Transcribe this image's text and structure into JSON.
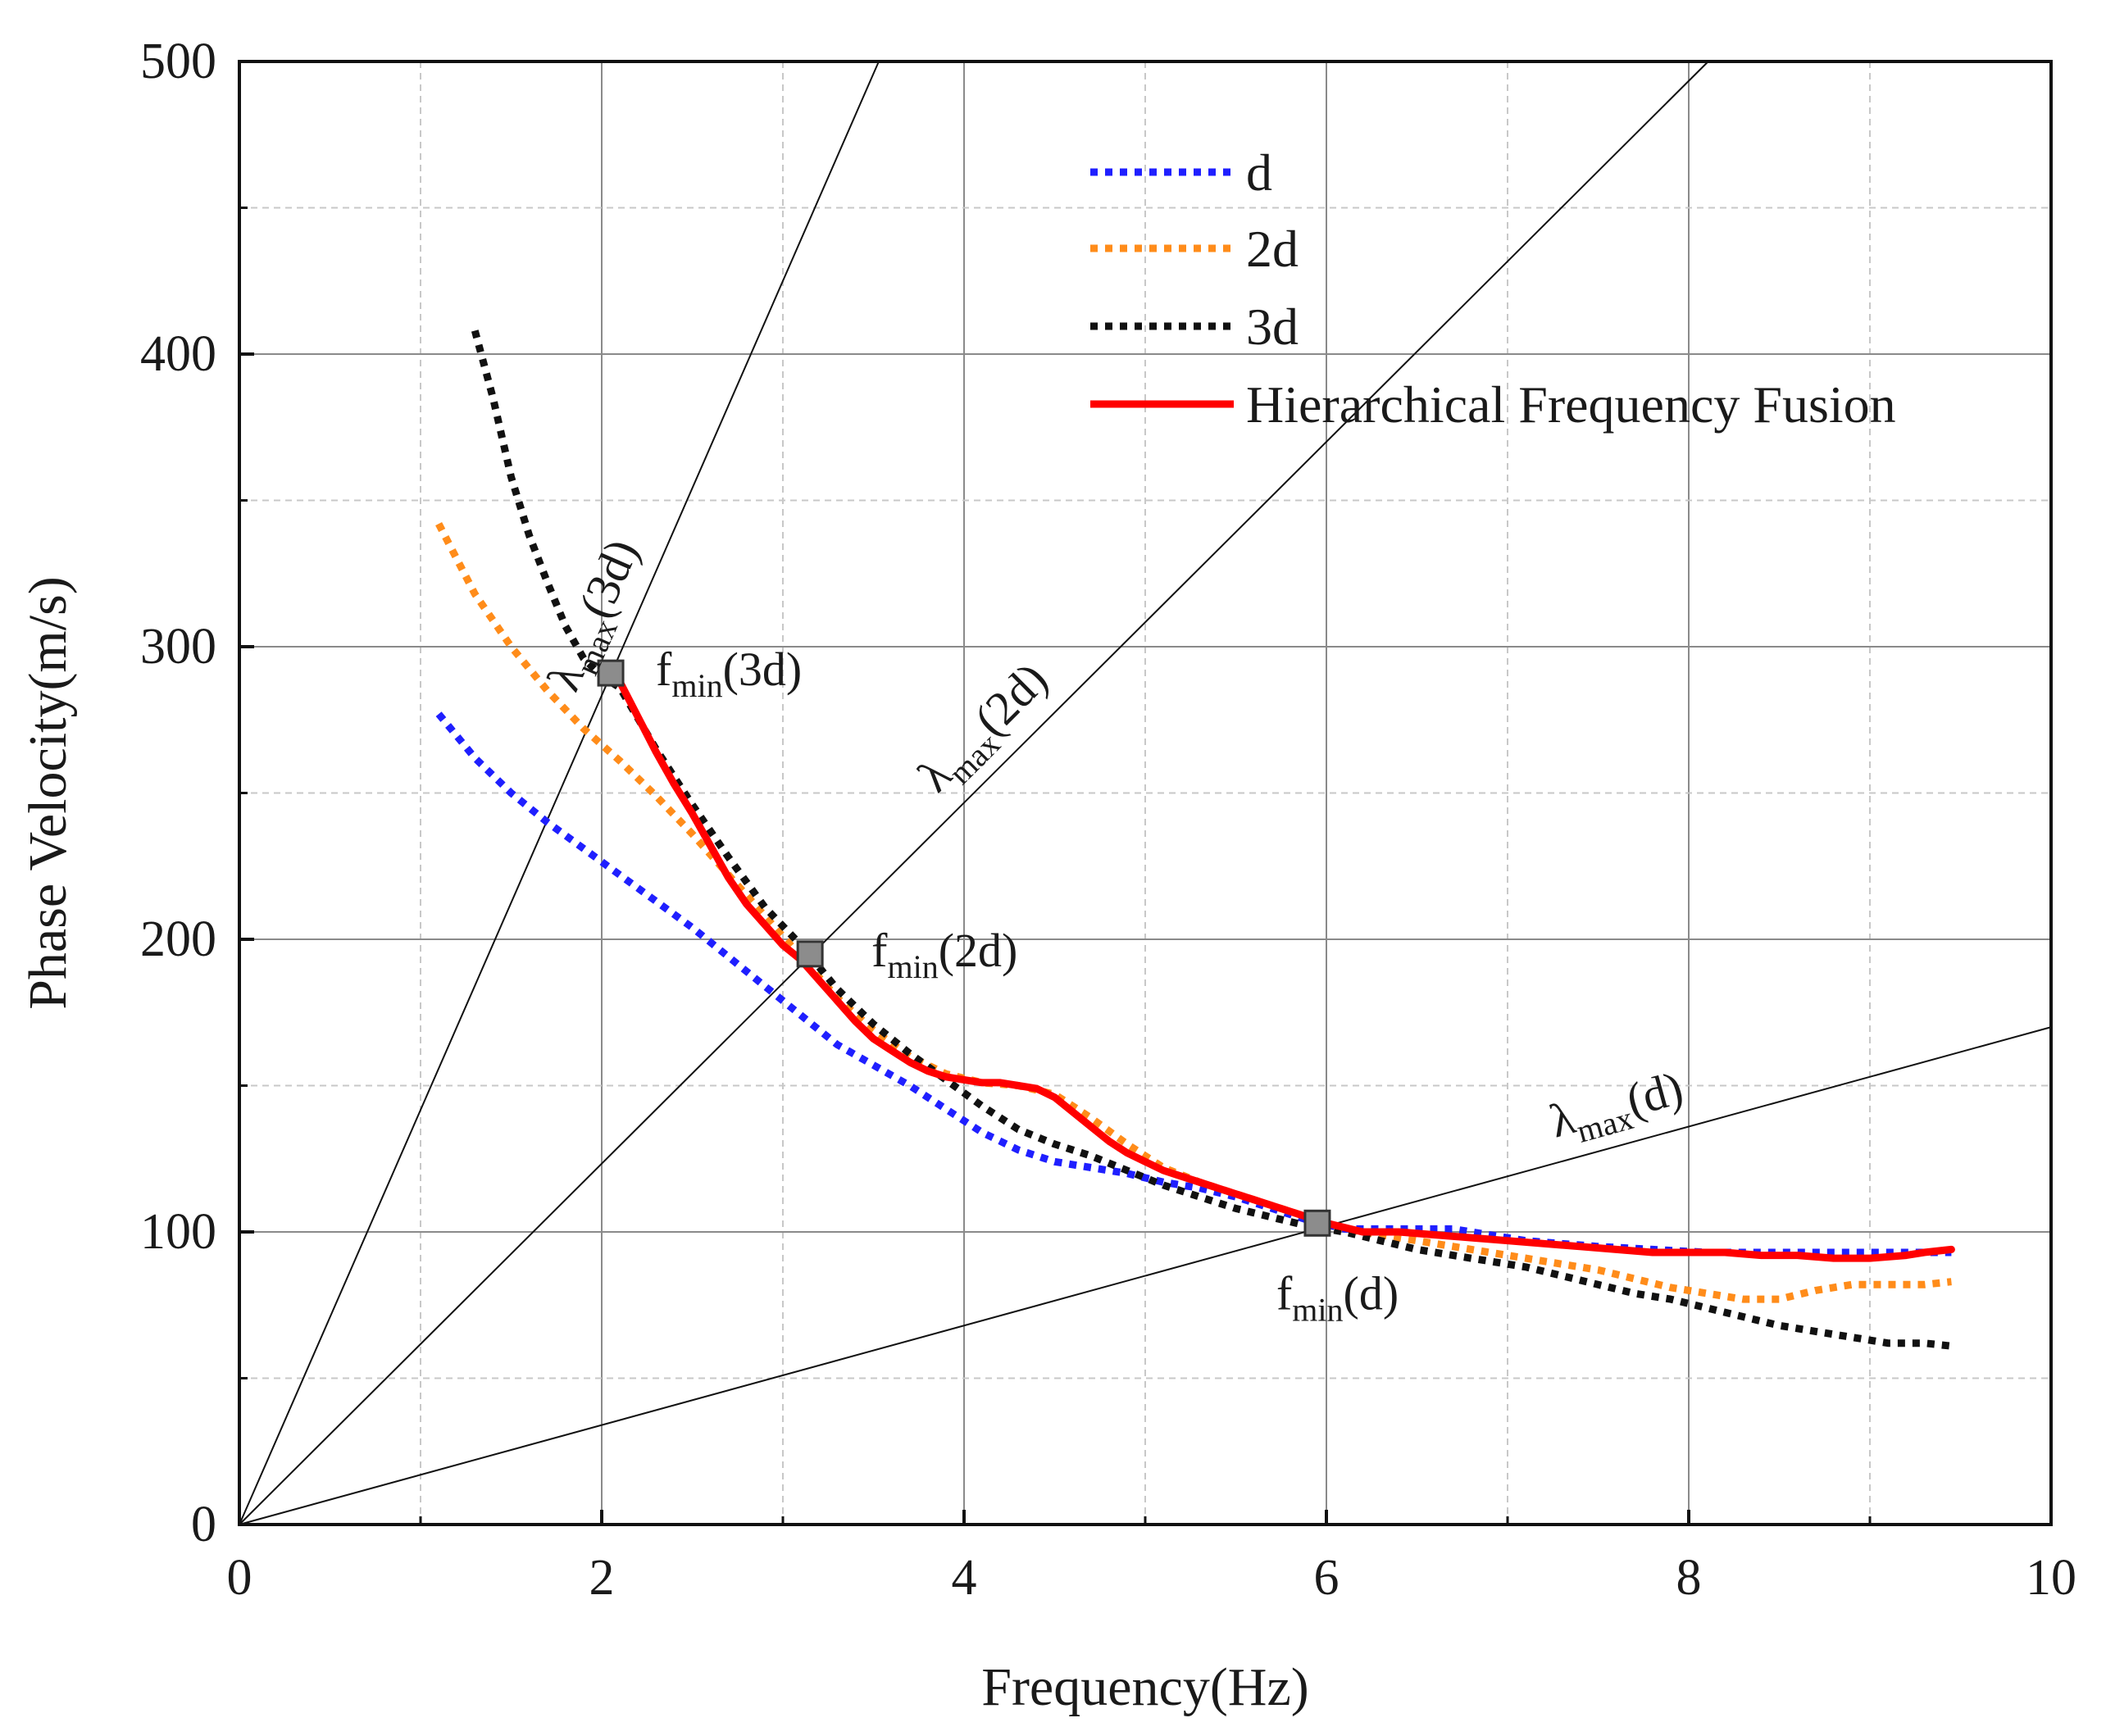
{
  "chart_data": {
    "type": "line",
    "title": "",
    "xlabel": "Frequency(Hz)",
    "ylabel": "Phase Velocity(m/s)",
    "xlim": [
      0,
      10
    ],
    "ylim": [
      0,
      500
    ],
    "xticks": [
      0,
      2,
      4,
      6,
      8,
      10
    ],
    "xtick_labels": [
      "0",
      "2",
      "4",
      "6",
      "8",
      "10"
    ],
    "yticks": [
      0,
      100,
      200,
      300,
      400,
      500
    ],
    "ytick_labels": [
      "0",
      "100",
      "200",
      "300",
      "400",
      "500"
    ],
    "grid": true,
    "legend_position": "top-right",
    "series": [
      {
        "name": "d",
        "color": "#1f1fff",
        "style": "dotted",
        "x": [
          1.1,
          1.3,
          1.5,
          1.7,
          1.9,
          2.1,
          2.3,
          2.5,
          2.7,
          2.9,
          3.1,
          3.3,
          3.5,
          3.7,
          3.9,
          4.1,
          4.3,
          4.5,
          4.7,
          4.9,
          5.1,
          5.3,
          5.5,
          5.7,
          5.9,
          6.1,
          6.3,
          6.5,
          6.7,
          6.9,
          7.1,
          7.3,
          7.5,
          7.8,
          8.1,
          8.4,
          8.7,
          9.0,
          9.3,
          9.45
        ],
        "y": [
          277,
          262,
          250,
          240,
          231,
          222,
          213,
          204,
          194,
          184,
          174,
          164,
          157,
          150,
          142,
          134,
          128,
          124,
          122,
          120,
          117,
          115,
          112,
          108,
          104,
          101,
          101,
          101,
          101,
          99,
          97,
          96,
          95,
          94,
          93,
          93,
          93,
          93,
          93,
          93
        ]
      },
      {
        "name": "2d",
        "color": "#ff8c1a",
        "style": "dotted",
        "x": [
          1.1,
          1.3,
          1.5,
          1.7,
          1.9,
          2.1,
          2.3,
          2.5,
          2.7,
          2.9,
          3.1,
          3.3,
          3.5,
          3.7,
          3.9,
          4.1,
          4.3,
          4.5,
          4.7,
          4.9,
          5.1,
          5.3,
          5.5,
          5.7,
          5.9,
          6.1,
          6.3,
          6.5,
          6.7,
          6.9,
          7.1,
          7.3,
          7.5,
          7.7,
          7.9,
          8.1,
          8.3,
          8.5,
          8.7,
          8.9,
          9.1,
          9.3,
          9.45
        ],
        "y": [
          342,
          318,
          300,
          285,
          272,
          261,
          249,
          236,
          222,
          208,
          194,
          180,
          169,
          160,
          154,
          151,
          150,
          147,
          139,
          130,
          122,
          117,
          113,
          109,
          105,
          101,
          99,
          97,
          95,
          93,
          91,
          89,
          87,
          84,
          81,
          79,
          77,
          77,
          80,
          82,
          82,
          82,
          83
        ]
      },
      {
        "name": "3d",
        "color": "#111111",
        "style": "dotted",
        "x": [
          1.3,
          1.4,
          1.5,
          1.6,
          1.7,
          1.8,
          1.9,
          2.0,
          2.1,
          2.3,
          2.5,
          2.7,
          2.9,
          3.1,
          3.3,
          3.5,
          3.7,
          3.9,
          4.1,
          4.3,
          4.5,
          4.7,
          4.9,
          5.1,
          5.3,
          5.5,
          5.7,
          5.9,
          6.1,
          6.3,
          6.5,
          6.7,
          6.9,
          7.1,
          7.3,
          7.5,
          7.7,
          7.9,
          8.1,
          8.3,
          8.5,
          8.7,
          8.9,
          9.1,
          9.3,
          9.45
        ],
        "y": [
          408,
          385,
          358,
          338,
          322,
          307,
          296,
          290,
          286,
          265,
          246,
          228,
          211,
          198,
          183,
          171,
          161,
          152,
          143,
          135,
          130,
          126,
          121,
          116,
          112,
          108,
          105,
          102,
          100,
          97,
          94,
          92,
          90,
          88,
          85,
          82,
          79,
          77,
          74,
          71,
          68,
          66,
          64,
          62,
          62,
          61
        ]
      },
      {
        "name": "Hierarchical Frequency Fusion",
        "color": "#ff0000",
        "style": "solid",
        "x": [
          2.1,
          2.2,
          2.3,
          2.4,
          2.5,
          2.6,
          2.7,
          2.8,
          2.9,
          3.0,
          3.1,
          3.2,
          3.3,
          3.4,
          3.5,
          3.6,
          3.7,
          3.8,
          3.9,
          4.0,
          4.1,
          4.2,
          4.3,
          4.4,
          4.5,
          4.6,
          4.7,
          4.8,
          4.9,
          5.0,
          5.1,
          5.2,
          5.3,
          5.4,
          5.5,
          5.6,
          5.7,
          5.8,
          5.9,
          6.0,
          6.2,
          6.4,
          6.6,
          6.8,
          7.0,
          7.2,
          7.4,
          7.6,
          7.8,
          8.0,
          8.2,
          8.4,
          8.6,
          8.8,
          9.0,
          9.2,
          9.3,
          9.45
        ],
        "y": [
          288,
          276,
          264,
          253,
          243,
          232,
          221,
          212,
          205,
          198,
          193,
          186,
          179,
          172,
          166,
          162,
          158,
          155,
          153,
          152,
          151,
          151,
          150,
          149,
          146,
          141,
          136,
          131,
          127,
          124,
          121,
          119,
          117,
          115,
          113,
          111,
          109,
          107,
          105,
          103,
          100,
          100,
          99,
          98,
          97,
          96,
          95,
          94,
          93,
          93,
          93,
          92,
          92,
          91,
          91,
          92,
          93,
          94
        ]
      }
    ],
    "reference_lines": [
      {
        "label_main": "λ",
        "label_sub": "max",
        "label_tail": "(3d)",
        "slope": 141.67
      },
      {
        "label_main": "λ",
        "label_sub": "max",
        "label_tail": "(2d)",
        "slope": 61.67
      },
      {
        "label_main": "λ",
        "label_sub": "max",
        "label_tail": "(d)",
        "slope": 17.0
      }
    ],
    "markers": [
      {
        "x": 2.05,
        "y": 291,
        "label_main": "f",
        "label_sub": "min",
        "label_tail": "(3d)"
      },
      {
        "x": 3.15,
        "y": 195,
        "label_main": "f",
        "label_sub": "min",
        "label_tail": "(2d)"
      },
      {
        "x": 5.95,
        "y": 103,
        "label_main": "f",
        "label_sub": "min",
        "label_tail": "(d)"
      }
    ]
  }
}
